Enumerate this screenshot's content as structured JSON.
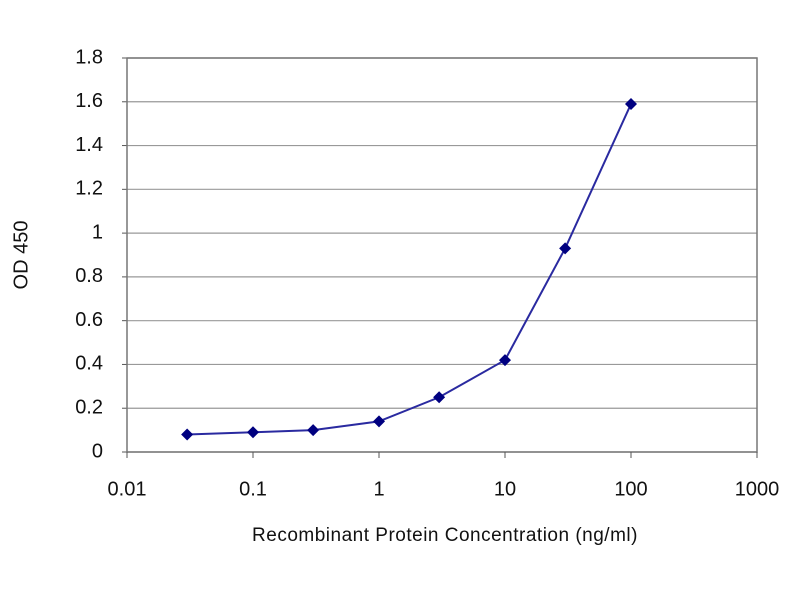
{
  "chart_data": {
    "type": "line",
    "x_label": "Recombinant Protein Concentration (ng/ml)",
    "y_label": "OD 450",
    "x": [
      0.03,
      0.1,
      0.3,
      1,
      3,
      10,
      30,
      100
    ],
    "values": [
      0.08,
      0.09,
      0.1,
      0.14,
      0.25,
      0.42,
      0.93,
      1.59
    ],
    "color": "#2a2aa0",
    "marker_color": "#000080",
    "x_log": true,
    "xlim": [
      0.01,
      1000
    ],
    "xticks": [
      0.01,
      0.1,
      1,
      10,
      100,
      1000
    ],
    "ylim": [
      0,
      1.8
    ],
    "yticks": [
      0,
      0.2,
      0.4,
      0.6,
      0.8,
      1,
      1.2,
      1.4,
      1.6,
      1.8
    ],
    "grid": true
  }
}
